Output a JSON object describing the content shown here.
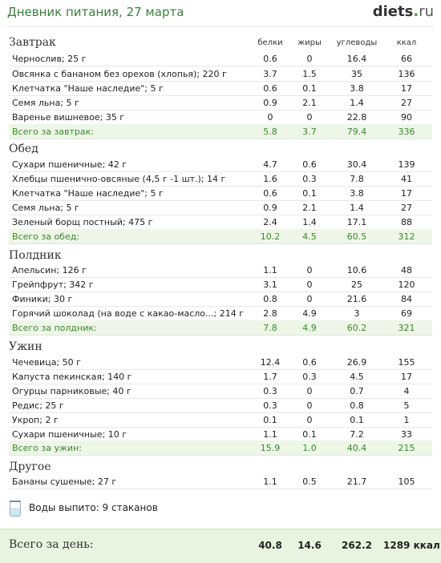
{
  "header": {
    "title": "Дневник питания, 27 марта",
    "logo_main": "diets",
    "logo_dot": ".",
    "logo_tld": "ru"
  },
  "columns": {
    "protein": "белки",
    "fat": "жиры",
    "carbs": "углеводы",
    "kcal": "ккал"
  },
  "meals": [
    {
      "title": "Завтрак",
      "items": [
        {
          "name": "Чернослив; 25 г",
          "b": "0.6",
          "f": "0",
          "u": "16.4",
          "k": "66"
        },
        {
          "name": "Овсянка с бананом без орехов (хлопья); 220 г",
          "b": "3.7",
          "f": "1.5",
          "u": "35",
          "k": "136"
        },
        {
          "name": "Клетчатка \"Наше наследие\"; 5 г",
          "b": "0.6",
          "f": "0.1",
          "u": "3.8",
          "k": "17"
        },
        {
          "name": "Семя льна; 5 г",
          "b": "0.9",
          "f": "2.1",
          "u": "1.4",
          "k": "27"
        },
        {
          "name": "Варенье вишневое; 35 г",
          "b": "0",
          "f": "0",
          "u": "22.8",
          "k": "90"
        }
      ],
      "total": {
        "label": "Всего за завтрак:",
        "b": "5.8",
        "f": "3.7",
        "u": "79.4",
        "k": "336"
      }
    },
    {
      "title": "Обед",
      "items": [
        {
          "name": "Сухари пшеничные; 42 г",
          "b": "4.7",
          "f": "0.6",
          "u": "30.4",
          "k": "139"
        },
        {
          "name": "Хлебцы пшенично-овсяные (4,5 г -1 шт.); 14 г",
          "b": "1.6",
          "f": "0.3",
          "u": "7.8",
          "k": "41"
        },
        {
          "name": "Клетчатка \"Наше наследие\"; 5 г",
          "b": "0.6",
          "f": "0.1",
          "u": "3.8",
          "k": "17"
        },
        {
          "name": "Семя льна; 5 г",
          "b": "0.9",
          "f": "2.1",
          "u": "1.4",
          "k": "27"
        },
        {
          "name": "Зеленый борщ постный; 475 г",
          "b": "2.4",
          "f": "1.4",
          "u": "17.1",
          "k": "88"
        }
      ],
      "total": {
        "label": "Всего за обед:",
        "b": "10.2",
        "f": "4.5",
        "u": "60.5",
        "k": "312"
      }
    },
    {
      "title": "Полдник",
      "items": [
        {
          "name": "Апельсин; 126 г",
          "b": "1.1",
          "f": "0",
          "u": "10.6",
          "k": "48"
        },
        {
          "name": "Грейпфрут; 342 г",
          "b": "3.1",
          "f": "0",
          "u": "25",
          "k": "120"
        },
        {
          "name": "Финики; 30 г",
          "b": "0.8",
          "f": "0",
          "u": "21.6",
          "k": "84"
        },
        {
          "name": "Горячий шоколад (на воде с какао-масло...; 214 г",
          "b": "2.8",
          "f": "4.9",
          "u": "3",
          "k": "69"
        }
      ],
      "total": {
        "label": "Всего за полдник:",
        "b": "7.8",
        "f": "4.9",
        "u": "60.2",
        "k": "321"
      }
    },
    {
      "title": "Ужин",
      "items": [
        {
          "name": "Чечевица; 50 г",
          "b": "12.4",
          "f": "0.6",
          "u": "26.9",
          "k": "155"
        },
        {
          "name": "Капуста пекинская; 140 г",
          "b": "1.7",
          "f": "0.3",
          "u": "4.5",
          "k": "17"
        },
        {
          "name": "Огурцы парниковые; 40 г",
          "b": "0.3",
          "f": "0",
          "u": "0.7",
          "k": "4"
        },
        {
          "name": "Редис; 25 г",
          "b": "0.3",
          "f": "0",
          "u": "0.8",
          "k": "5"
        },
        {
          "name": "Укроп; 2 г",
          "b": "0.1",
          "f": "0",
          "u": "0.1",
          "k": "1"
        },
        {
          "name": "Сухари пшеничные; 10 г",
          "b": "1.1",
          "f": "0.1",
          "u": "7.2",
          "k": "33"
        }
      ],
      "total": {
        "label": "Всего за ужин:",
        "b": "15.9",
        "f": "1.0",
        "u": "40.4",
        "k": "215"
      }
    },
    {
      "title": "Другое",
      "items": [
        {
          "name": "Бананы сушеные; 27 г",
          "b": "1.1",
          "f": "0.5",
          "u": "21.7",
          "k": "105"
        }
      ]
    }
  ],
  "water": {
    "text": "Воды выпито: 9 стаканов",
    "icon": "glass-icon"
  },
  "day_total": {
    "label": "Всего за день:",
    "b": "40.8",
    "f": "14.6",
    "u": "262.2",
    "k": "1289 ккал"
  },
  "colors": {
    "accent_green": "#3a8a2a",
    "sum_row_bg": "#eef6e8",
    "total_bg": "#e8f4df"
  }
}
